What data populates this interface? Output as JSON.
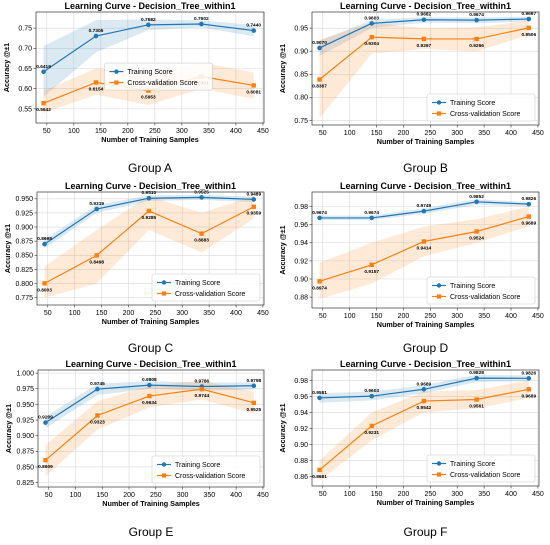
{
  "colors": {
    "train": "#1f77b4",
    "cv": "#ff7f0e",
    "train_band": "#1f77b4",
    "cv_band": "#ff7f0e",
    "grid": "#d9d9d9"
  },
  "chart_data": [
    {
      "type": "line",
      "group": "Group A",
      "title": "Learning Curve - Decision_Tree_within1",
      "xlabel": "Number of Training Samples",
      "ylabel": "Accuracy @±1",
      "xlim": [
        30,
        452
      ],
      "ylim": [
        0.515,
        0.79
      ],
      "xticks": [
        50,
        100,
        150,
        200,
        250,
        300,
        350,
        400,
        450
      ],
      "yticks": [
        0.55,
        0.6,
        0.65,
        0.7,
        0.75
      ],
      "ytick_labels": [
        "0.55",
        "0.60",
        "0.65",
        "0.70",
        "0.75"
      ],
      "legend": {
        "position": "center",
        "entries": [
          "Training Score",
          "Cross-validation Score"
        ]
      },
      "grid": true,
      "x": [
        44,
        141,
        238,
        336,
        433
      ],
      "series": [
        {
          "name": "Training Score",
          "values": [
            0.6419,
            0.7305,
            0.7582,
            0.7602,
            0.744
          ],
          "labels": [
            "0.6419",
            "0.7305",
            "0.7582",
            "0.7602",
            "0.7440"
          ],
          "band_lower": [
            0.58,
            0.69,
            0.745,
            0.752,
            0.73
          ],
          "band_upper": [
            0.705,
            0.77,
            0.772,
            0.769,
            0.758
          ]
        },
        {
          "name": "Cross-validation Score",
          "values": [
            0.5642,
            0.6154,
            0.5953,
            0.6301,
            0.6081
          ],
          "labels": [
            "0.5642",
            "0.6154",
            "0.5953",
            "0.6301",
            "0.6081"
          ],
          "band_lower": [
            0.54,
            0.585,
            0.56,
            0.6,
            0.575
          ],
          "band_upper": [
            0.595,
            0.65,
            0.64,
            0.665,
            0.64
          ]
        }
      ]
    },
    {
      "type": "line",
      "group": "Group B",
      "title": "Learning Curve - Decision_Tree_within1",
      "xlabel": "Number of Training Samples",
      "ylabel": "Accuracy @±1",
      "xlim": [
        30,
        452
      ],
      "ylim": [
        0.74,
        0.985
      ],
      "xticks": [
        50,
        100,
        150,
        200,
        250,
        300,
        350,
        400,
        450
      ],
      "yticks": [
        0.75,
        0.8,
        0.85,
        0.9,
        0.95
      ],
      "ytick_labels": [
        "0.75",
        "0.80",
        "0.85",
        "0.90",
        "0.95"
      ],
      "legend": {
        "position": "bottom-right",
        "entries": [
          "Training Score",
          "Cross-validation Score"
        ]
      },
      "grid": true,
      "x": [
        44,
        141,
        238,
        336,
        433
      ],
      "series": [
        {
          "name": "Training Score",
          "values": [
            0.907,
            0.9603,
            0.9682,
            0.9674,
            0.9697
          ],
          "labels": [
            "0.9070",
            "0.9603",
            "0.9682",
            "0.9674",
            "0.9697"
          ],
          "band_lower": [
            0.89,
            0.95,
            0.962,
            0.961,
            0.964
          ],
          "band_upper": [
            0.922,
            0.968,
            0.974,
            0.973,
            0.975
          ]
        },
        {
          "name": "Cross-validation Score",
          "values": [
            0.8387,
            0.9304,
            0.9267,
            0.9266,
            0.9506
          ],
          "labels": [
            "0.8387",
            "0.9304",
            "0.9267",
            "0.9266",
            "0.9506"
          ],
          "band_lower": [
            0.755,
            0.895,
            0.905,
            0.9,
            0.935
          ],
          "band_upper": [
            0.925,
            0.962,
            0.95,
            0.952,
            0.966
          ]
        }
      ]
    },
    {
      "type": "line",
      "group": "Group C",
      "title": "Learning Curve - Decision_Tree_within1",
      "xlabel": "Number of Training Samples",
      "ylabel": "Accuracy @±1",
      "xlim": [
        30,
        452
      ],
      "ylim": [
        0.762,
        0.962
      ],
      "xticks": [
        50,
        100,
        150,
        200,
        250,
        300,
        350,
        400,
        450
      ],
      "yticks": [
        0.775,
        0.8,
        0.825,
        0.85,
        0.875,
        0.9,
        0.925,
        0.95
      ],
      "ytick_labels": [
        "0.775",
        "0.800",
        "0.825",
        "0.850",
        "0.875",
        "0.900",
        "0.925",
        "0.950"
      ],
      "legend": {
        "position": "bottom-right",
        "entries": [
          "Training Score",
          "Cross-validation Score"
        ]
      },
      "grid": true,
      "x": [
        44,
        141,
        238,
        336,
        433
      ],
      "series": [
        {
          "name": "Training Score",
          "values": [
            0.8698,
            0.9319,
            0.951,
            0.9525,
            0.9489
          ],
          "labels": [
            "0.8698",
            "0.9319",
            "0.9510",
            "0.9525",
            "0.9489"
          ],
          "band_lower": [
            0.862,
            0.925,
            0.946,
            0.948,
            0.944
          ],
          "band_upper": [
            0.878,
            0.939,
            0.956,
            0.957,
            0.954
          ]
        },
        {
          "name": "Cross-validation Score",
          "values": [
            0.8003,
            0.8498,
            0.9285,
            0.8883,
            0.9359
          ],
          "labels": [
            "0.8003",
            "0.8498",
            "0.9285",
            "0.8883",
            "0.9359"
          ],
          "band_lower": [
            0.775,
            0.8,
            0.895,
            0.855,
            0.915
          ],
          "band_upper": [
            0.83,
            0.895,
            0.955,
            0.925,
            0.955
          ]
        }
      ]
    },
    {
      "type": "line",
      "group": "Group D",
      "title": "Learning Curve - Decision_Tree_within1",
      "xlabel": "Number of Training Samples",
      "ylabel": "Accuracy @±1",
      "xlim": [
        30,
        452
      ],
      "ylim": [
        0.868,
        0.996
      ],
      "xticks": [
        50,
        100,
        150,
        200,
        250,
        300,
        350,
        400,
        450
      ],
      "yticks": [
        0.88,
        0.9,
        0.92,
        0.94,
        0.96,
        0.98
      ],
      "ytick_labels": [
        "0.88",
        "0.90",
        "0.92",
        "0.94",
        "0.96",
        "0.98"
      ],
      "legend": {
        "position": "bottom-right",
        "entries": [
          "Training Score",
          "Cross-validation Score"
        ]
      },
      "grid": true,
      "x": [
        44,
        141,
        238,
        336,
        433
      ],
      "series": [
        {
          "name": "Training Score",
          "values": [
            0.9674,
            0.9674,
            0.9749,
            0.9852,
            0.9826
          ],
          "labels": [
            "0.9674",
            "0.9674",
            "0.9749",
            "0.9852",
            "0.9826"
          ],
          "band_lower": [
            0.965,
            0.965,
            0.972,
            0.982,
            0.98
          ],
          "band_upper": [
            0.97,
            0.97,
            0.978,
            0.988,
            0.985
          ]
        },
        {
          "name": "Cross-validation Score",
          "values": [
            0.8974,
            0.9157,
            0.9414,
            0.9524,
            0.9689
          ],
          "labels": [
            "0.8974",
            "0.9157",
            "0.9414",
            "0.9524",
            "0.9689"
          ],
          "band_lower": [
            0.878,
            0.895,
            0.925,
            0.94,
            0.958
          ],
          "band_upper": [
            0.918,
            0.94,
            0.958,
            0.966,
            0.98
          ]
        }
      ]
    },
    {
      "type": "line",
      "group": "Group E",
      "title": "Learning Curve - Decision_Tree_within1",
      "xlabel": "Number of Training Samples",
      "ylabel": "Accuracy @±1",
      "xlim": [
        30,
        452
      ],
      "ylim": [
        0.818,
        1.005
      ],
      "xticks": [
        50,
        100,
        150,
        200,
        250,
        300,
        350,
        400,
        450
      ],
      "yticks": [
        0.825,
        0.85,
        0.875,
        0.9,
        0.925,
        0.95,
        0.975,
        1.0
      ],
      "ytick_labels": [
        "0.825",
        "0.850",
        "0.875",
        "0.900",
        "0.925",
        "0.950",
        "0.975",
        "1.000"
      ],
      "legend": {
        "position": "bottom-right",
        "entries": [
          "Training Score",
          "Cross-validation Score"
        ]
      },
      "grid": true,
      "x": [
        44,
        141,
        238,
        336,
        433
      ],
      "series": [
        {
          "name": "Training Score",
          "values": [
            0.9209,
            0.9745,
            0.9808,
            0.9786,
            0.9798
          ],
          "labels": [
            "0.9209",
            "0.9745",
            "0.9808",
            "0.9786",
            "0.9798"
          ],
          "band_lower": [
            0.912,
            0.965,
            0.975,
            0.972,
            0.974
          ],
          "band_upper": [
            0.93,
            0.983,
            0.987,
            0.985,
            0.985
          ]
        },
        {
          "name": "Cross-validation Score",
          "values": [
            0.8609,
            0.9323,
            0.9634,
            0.9744,
            0.9525
          ],
          "labels": [
            "0.8609",
            "0.9323",
            "0.9634",
            "0.9744",
            "0.9525"
          ],
          "band_lower": [
            0.835,
            0.91,
            0.945,
            0.958,
            0.935
          ],
          "band_upper": [
            0.885,
            0.955,
            0.98,
            0.988,
            0.97
          ]
        }
      ]
    },
    {
      "type": "line",
      "group": "Group F",
      "title": "Learning Curve - Decision_Tree_within1",
      "xlabel": "Number of Training Samples",
      "ylabel": "Accuracy @±1",
      "xlim": [
        30,
        452
      ],
      "ylim": [
        0.848,
        0.993
      ],
      "xticks": [
        50,
        100,
        150,
        200,
        250,
        300,
        350,
        400,
        450
      ],
      "yticks": [
        0.86,
        0.88,
        0.9,
        0.92,
        0.94,
        0.96,
        0.98
      ],
      "ytick_labels": [
        "0.86",
        "0.88",
        "0.90",
        "0.92",
        "0.94",
        "0.96",
        "0.98"
      ],
      "legend": {
        "position": "bottom-right",
        "entries": [
          "Training Score",
          "Cross-validation Score"
        ]
      },
      "grid": true,
      "x": [
        44,
        141,
        238,
        336,
        433
      ],
      "series": [
        {
          "name": "Training Score",
          "values": [
            0.9581,
            0.9603,
            0.9689,
            0.9828,
            0.9826
          ],
          "labels": [
            "0.9581",
            "0.9603",
            "0.9689",
            "0.9828",
            "0.9826"
          ],
          "band_lower": [
            0.952,
            0.955,
            0.964,
            0.978,
            0.979
          ],
          "band_upper": [
            0.964,
            0.966,
            0.974,
            0.987,
            0.986
          ]
        },
        {
          "name": "Cross-validation Score",
          "values": [
            0.8681,
            0.9231,
            0.9542,
            0.9561,
            0.9689
          ],
          "labels": [
            "0.8681",
            "0.9231",
            "0.9542",
            "0.9561",
            "0.9689"
          ],
          "band_lower": [
            0.855,
            0.905,
            0.94,
            0.945,
            0.958
          ],
          "band_upper": [
            0.88,
            0.94,
            0.966,
            0.968,
            0.98
          ]
        }
      ]
    }
  ]
}
